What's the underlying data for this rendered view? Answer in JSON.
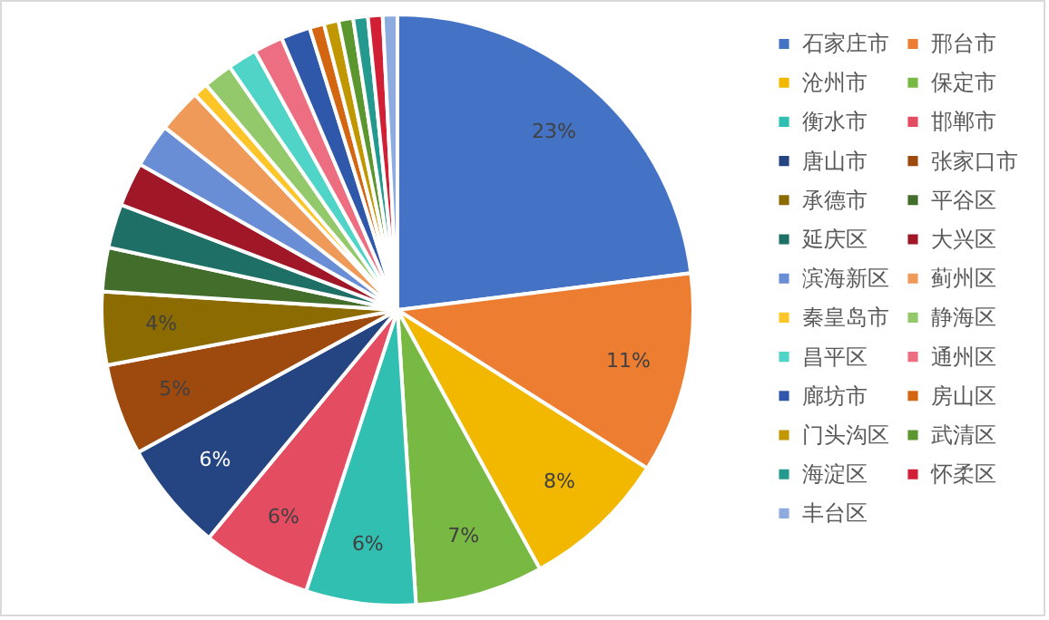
{
  "chart_data": {
    "type": "pie",
    "legend": "right",
    "categories": [
      "石家庄市",
      "邢台市",
      "沧州市",
      "保定市",
      "衡水市",
      "邯郸市",
      "唐山市",
      "张家口市",
      "承德市",
      "平谷区",
      "延庆区",
      "大兴区",
      "滨海新区",
      "蓟州区",
      "秦皇岛市",
      "静海区",
      "昌平区",
      "通州区",
      "廊坊市",
      "房山区",
      "门头沟区",
      "武清区",
      "海淀区",
      "怀柔区",
      "丰台区"
    ],
    "values": [
      23,
      11,
      8,
      7,
      6,
      6,
      6,
      5,
      4,
      2.4,
      2.4,
      2.4,
      2.4,
      2.4,
      0.8,
      1.6,
      1.6,
      1.6,
      1.6,
      0.8,
      0.8,
      0.8,
      0.8,
      0.8,
      0.8
    ],
    "value_labels": [
      "23%",
      "11%",
      "8%",
      "7%",
      "6%",
      "6%",
      "6%",
      "5%",
      "4%",
      null,
      null,
      null,
      null,
      null,
      null,
      null,
      null,
      null,
      null,
      null,
      null,
      null,
      null,
      null,
      null
    ],
    "colors": [
      "#4472c4",
      "#ed7d31",
      "#f2b800",
      "#78b943",
      "#31bfb2",
      "#e44c61",
      "#254482",
      "#9e4a0f",
      "#8c6b00",
      "#436d2b",
      "#1e7067",
      "#a01728",
      "#6a8ed6",
      "#f09a59",
      "#fdc527",
      "#93c96a",
      "#4fd4c7",
      "#ec6e80",
      "#2f58ab",
      "#d46612",
      "#c19700",
      "#5c962f",
      "#249a8f",
      "#d11f36",
      "#8eabe0"
    ]
  }
}
